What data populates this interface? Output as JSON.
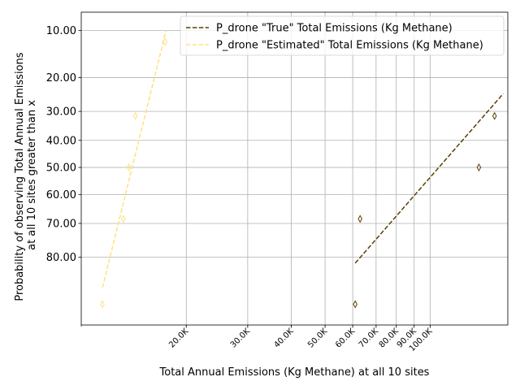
{
  "chart_data": {
    "type": "scatter",
    "title": "",
    "xlabel": "Total Annual Emissions (Kg Methane) at all 10 sites",
    "ylabel_lines": [
      "Probability of observing Total Annual Emissions",
      "at all 10 sites greater than x"
    ],
    "x_scale": "log",
    "y_scale": "normal-probability",
    "xlim": [
      10000,
      167000
    ],
    "ylim_prob": [
      93,
      7.3
    ],
    "x_ticks": [
      {
        "value": 20000,
        "label": "20.0K"
      },
      {
        "value": 30000,
        "label": "30.0K"
      },
      {
        "value": 40000,
        "label": "40.0K"
      },
      {
        "value": 50000,
        "label": "50.0K"
      },
      {
        "value": 60000,
        "label": "60.0K"
      },
      {
        "value": 70000,
        "label": "70.0K"
      },
      {
        "value": 80000,
        "label": "80.0K"
      },
      {
        "value": 90000,
        "label": "90.0K"
      },
      {
        "value": 100000,
        "label": "100.0K"
      }
    ],
    "x_minor_ticks": [
      200000
    ],
    "y_ticks": [
      {
        "value": 10,
        "label": "10.00"
      },
      {
        "value": 20,
        "label": "20.00"
      },
      {
        "value": 30,
        "label": "30.00"
      },
      {
        "value": 40,
        "label": "40.00"
      },
      {
        "value": 50,
        "label": "50.00"
      },
      {
        "value": 60,
        "label": "60.00"
      },
      {
        "value": 70,
        "label": "70.00"
      },
      {
        "value": 80,
        "label": "80.00"
      }
    ],
    "grid": true,
    "legend_position": "top-right",
    "series": [
      {
        "name": "P_drone \"True\" Total Emissions (Kg Methane)",
        "color": "#5a3f00",
        "marker": "thin_diamond",
        "points": [
          {
            "x": 61000,
            "y": 90.0
          },
          {
            "x": 63000,
            "y": 68.5
          },
          {
            "x": 138000,
            "y": 50.0
          },
          {
            "x": 153000,
            "y": 31.5
          }
        ],
        "fit_line": [
          {
            "x": 61000,
            "y": 81.5
          },
          {
            "x": 162000,
            "y": 24.5
          }
        ]
      },
      {
        "name": "P_drone \"Estimated\" Total Emissions (Kg Methane)",
        "color": "#ffe180",
        "marker": "thin_diamond",
        "points": [
          {
            "x": 11500,
            "y": 90.0
          },
          {
            "x": 13200,
            "y": 68.5
          },
          {
            "x": 13700,
            "y": 50.0
          },
          {
            "x": 14300,
            "y": 31.5
          },
          {
            "x": 17400,
            "y": 12.0
          }
        ],
        "fit_line": [
          {
            "x": 11500,
            "y": 87.0
          },
          {
            "x": 17500,
            "y": 10.0
          }
        ]
      }
    ]
  }
}
